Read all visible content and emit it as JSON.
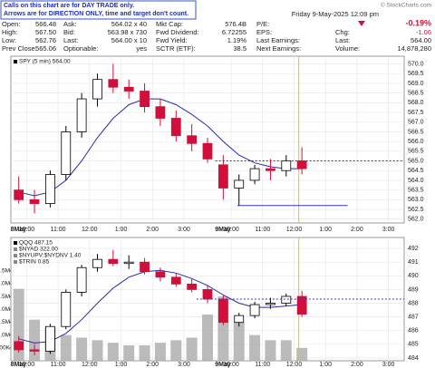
{
  "header": {
    "note": [
      "Calls on this chart are for DAY TRADE only.",
      "Arrows are for DIRECTION ONLY, time and target don't count."
    ],
    "copyright": "© StockCharts.com",
    "date": "Friday 9-May-2025 12:09 pm",
    "pct": "-0.19%",
    "rows": [
      [
        [
          "Open:",
          "566.48"
        ],
        [
          "Ask:",
          "564.02 x 40"
        ],
        [
          "Mkt Cap:",
          "576.4B"
        ],
        [
          "P/E:"
        ]
      ],
      [
        [
          "High:",
          "567.50"
        ],
        [
          "Bid:",
          "563.98 x 730"
        ],
        [
          "Fwd Dividend:",
          "6.72255"
        ],
        [
          "EPS:"
        ],
        [
          "Chg:",
          "-1.06"
        ]
      ],
      [
        [
          "Low:",
          "562.76"
        ],
        [
          "Last:",
          "564.00 x 10"
        ],
        [
          "Fwd Yield:",
          "1.19%"
        ],
        [
          "Last Earnings:"
        ],
        [
          "Last:",
          "564.00"
        ]
      ],
      [
        [
          "Prev Close:",
          "565.06"
        ],
        [
          "Optionable:",
          "yes"
        ],
        [
          "SCTR (ETF):",
          "38.5"
        ],
        [
          "Next Earnings:"
        ],
        [
          "Volume:",
          "14,878,280"
        ]
      ]
    ]
  },
  "chart_data": [
    {
      "type": "candlestick",
      "legend": [
        "SPY (5 min) 564.00"
      ],
      "x": [
        0.25,
        0.75,
        1.25,
        1.75,
        2.25,
        2.75,
        3.25,
        3.75,
        4.25,
        4.75,
        5.25,
        5.75,
        6.25,
        6.75,
        7.25,
        7.75,
        8.25,
        8.75,
        9.25
      ],
      "open": [
        563.5,
        563.0,
        562.8,
        564.3,
        566.5,
        568.2,
        569.2,
        568.8,
        568.6,
        567.8,
        567.2,
        566.3,
        565.9,
        564.8,
        563.6,
        564.0,
        564.6,
        564.5,
        565.0
      ],
      "high": [
        564.2,
        563.5,
        564.5,
        566.8,
        568.5,
        569.5,
        570.0,
        569.2,
        569.0,
        568.2,
        567.6,
        566.9,
        566.2,
        565.3,
        564.3,
        564.8,
        565.1,
        565.3,
        565.7
      ],
      "low": [
        562.8,
        562.3,
        562.6,
        564.0,
        566.2,
        567.8,
        568.5,
        568.2,
        567.5,
        566.8,
        566.0,
        565.5,
        564.9,
        563.0,
        562.7,
        563.8,
        564.0,
        564.2,
        564.3
      ],
      "close": [
        563.0,
        562.8,
        564.3,
        566.5,
        568.2,
        569.2,
        568.8,
        568.6,
        567.8,
        567.2,
        566.3,
        565.9,
        565.1,
        563.6,
        564.0,
        564.6,
        564.5,
        565.0,
        564.6
      ],
      "ma": {
        "color": "#2a2aa8",
        "values": [
          563.4,
          563.2,
          563.4,
          564.0,
          565.0,
          566.2,
          567.2,
          567.9,
          568.2,
          568.2,
          567.9,
          567.4,
          566.8,
          566.0,
          565.3,
          564.9,
          564.7,
          564.6,
          564.6
        ]
      },
      "xlim": [
        0,
        12.5
      ],
      "xticks": [
        {
          "value": 0.5,
          "label": "10:00"
        },
        {
          "value": 1.5,
          "label": "11:00"
        },
        {
          "value": 2.5,
          "label": "12:00"
        },
        {
          "value": 3.5,
          "label": "1:00"
        },
        {
          "value": 4.5,
          "label": "2:00"
        },
        {
          "value": 5.5,
          "label": "3:00"
        },
        {
          "value": 7,
          "label": "10:00"
        },
        {
          "value": 8,
          "label": "11:00"
        },
        {
          "value": 9,
          "label": "12:00"
        },
        {
          "value": 10,
          "label": "1:00"
        },
        {
          "value": 11,
          "label": "2:00"
        },
        {
          "value": 12,
          "label": "3:00"
        }
      ],
      "day_labels": [
        "8May",
        "9May"
      ],
      "ylim": [
        561.8,
        570.4
      ],
      "yticks": [
        {
          "value": 562,
          "label": "562.0"
        },
        {
          "value": 562.5,
          "label": "562.5"
        },
        {
          "value": 563,
          "label": "563.0"
        },
        {
          "value": 563.5,
          "label": "563.5"
        },
        {
          "value": 564,
          "label": "564.0"
        },
        {
          "value": 564.5,
          "label": "564.5"
        },
        {
          "value": 565,
          "label": "565.0"
        },
        {
          "value": 565.5,
          "label": "565.5"
        },
        {
          "value": 566,
          "label": "566.0"
        },
        {
          "value": 566.5,
          "label": "566.5"
        },
        {
          "value": 567,
          "label": "567.0"
        },
        {
          "value": 567.5,
          "label": "567.5"
        },
        {
          "value": 568,
          "label": "568.0"
        },
        {
          "value": 568.5,
          "label": "568.5"
        },
        {
          "value": 569,
          "label": "569.0"
        },
        {
          "value": 569.5,
          "label": "569.5"
        },
        {
          "value": 570,
          "label": "570.0"
        }
      ],
      "levels": [
        {
          "value": 565.0,
          "x": [
            6.5,
            12.5
          ],
          "style": "dashed"
        },
        {
          "value": 562.7,
          "x": [
            7.2,
            10.7
          ],
          "style": "solid"
        }
      ],
      "level_color": "#3333cc",
      "cursor": 9.15,
      "cursor_color": "#f0c000",
      "up_color": "#000000",
      "down_color": "#d0103a",
      "grid": true
    },
    {
      "type": "candlestick",
      "legend": [
        "QQQ 487.15",
        "$NYAD 322.00",
        "$NYUPV:$NYDNV 1.40",
        "$TRIN 0.85"
      ],
      "x": [
        0.25,
        0.75,
        1.25,
        1.75,
        2.25,
        2.75,
        3.25,
        3.75,
        4.25,
        4.75,
        5.25,
        5.75,
        6.25,
        6.75,
        7.25,
        7.75,
        8.25,
        8.75,
        9.25
      ],
      "open": [
        485.2,
        484.6,
        484.5,
        486.3,
        488.8,
        490.6,
        491.2,
        490.9,
        491.0,
        490.3,
        489.9,
        489.4,
        489.0,
        488.3,
        486.6,
        487.1,
        487.9,
        488.0,
        488.5
      ],
      "high": [
        485.6,
        485.0,
        486.5,
        489.0,
        490.8,
        491.6,
        491.9,
        491.5,
        491.3,
        490.6,
        490.2,
        489.8,
        489.3,
        488.6,
        487.3,
        488.1,
        488.4,
        488.7,
        488.9
      ],
      "low": [
        484.4,
        484.2,
        484.3,
        486.1,
        488.5,
        490.3,
        490.7,
        490.5,
        490.1,
        489.6,
        489.2,
        488.8,
        488.0,
        486.4,
        486.3,
        486.9,
        487.6,
        487.8,
        487.0
      ],
      "close": [
        484.6,
        484.5,
        486.3,
        488.8,
        490.6,
        491.2,
        490.9,
        491.0,
        490.3,
        489.9,
        489.4,
        489.0,
        488.3,
        486.6,
        487.1,
        487.9,
        488.0,
        488.5,
        487.2
      ],
      "ma": {
        "color": "#2a2aa8",
        "values": [
          485.4,
          485.1,
          485.2,
          485.8,
          486.8,
          488.0,
          489.1,
          489.9,
          490.3,
          490.4,
          490.2,
          489.8,
          489.3,
          488.6,
          488.0,
          487.7,
          487.7,
          487.8,
          487.9
        ]
      },
      "volume": {
        "color": "#aaaaaa",
        "values": [
          2.8,
          1.6,
          1.3,
          1.0,
          0.9,
          0.8,
          0.7,
          0.6,
          0.6,
          0.7,
          0.8,
          0.9,
          1.8,
          2.5,
          1.5,
          1.0,
          0.8,
          0.8,
          0.5
        ]
      },
      "vlim": [
        0,
        4.8
      ],
      "vticks": [
        {
          "value": 0.5,
          "label": "500K"
        },
        {
          "value": 1,
          "label": "1.0M"
        },
        {
          "value": 1.5,
          "label": "1.5M"
        },
        {
          "value": 2,
          "label": "2.0M"
        },
        {
          "value": 2.5,
          "label": "2.5M"
        },
        {
          "value": 3,
          "label": "3.0M"
        },
        {
          "value": 3.5,
          "label": "3.5M"
        }
      ],
      "xlim": [
        0,
        12.5
      ],
      "xticks": [
        {
          "value": 0.5,
          "label": "10:00"
        },
        {
          "value": 1.5,
          "label": "11:00"
        },
        {
          "value": 2.5,
          "label": "12:00"
        },
        {
          "value": 3.5,
          "label": "1:00"
        },
        {
          "value": 4.5,
          "label": "2:00"
        },
        {
          "value": 5.5,
          "label": "3:00"
        },
        {
          "value": 7,
          "label": "10:00"
        },
        {
          "value": 8,
          "label": "11:00"
        },
        {
          "value": 9,
          "label": "12:00"
        },
        {
          "value": 10,
          "label": "1:00"
        },
        {
          "value": 11,
          "label": "2:00"
        },
        {
          "value": 12,
          "label": "3:00"
        }
      ],
      "day_labels": [
        "8May",
        "9May"
      ],
      "ylim": [
        483.8,
        492.8
      ],
      "yticks": [
        484,
        485,
        486,
        487,
        488,
        489,
        490,
        491,
        492
      ],
      "levels": [
        {
          "value": 488.3,
          "x": [
            5.9,
            12.5
          ],
          "style": "dashed"
        }
      ],
      "level_color": "#3333cc",
      "cursor": 9.15,
      "cursor_color": "#f0c000",
      "up_color": "#000000",
      "down_color": "#d0103a",
      "grid": true
    }
  ]
}
